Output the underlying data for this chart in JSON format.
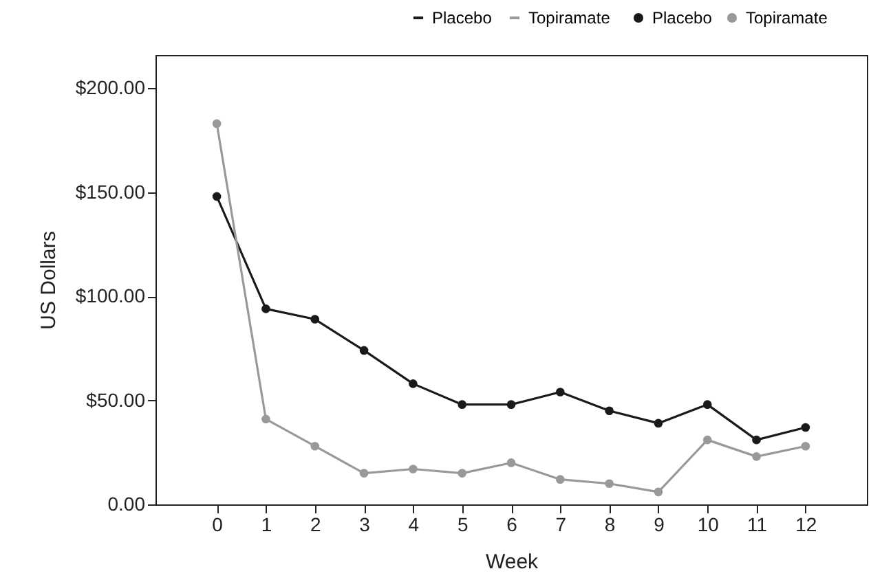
{
  "chart_data": {
    "type": "line",
    "xlabel": "Week",
    "ylabel": "US Dollars",
    "x": [
      0,
      1,
      2,
      3,
      4,
      5,
      6,
      7,
      8,
      9,
      10,
      11,
      12
    ],
    "xlim": [
      -1.25,
      13.25
    ],
    "xticks": [
      0,
      1,
      2,
      3,
      4,
      5,
      6,
      7,
      8,
      9,
      10,
      11,
      12
    ],
    "ylim": [
      0,
      216
    ],
    "yticks": [
      {
        "value": 0,
        "label": "0.00"
      },
      {
        "value": 50,
        "label": "$50.00"
      },
      {
        "value": 100,
        "label": "$100.00"
      },
      {
        "value": 150,
        "label": "$150.00"
      },
      {
        "value": 200,
        "label": "$200.00"
      }
    ],
    "series": [
      {
        "name": "Placebo",
        "color": "#1a1a1a",
        "values": [
          148,
          94,
          89,
          74,
          58,
          48,
          48,
          54,
          45,
          39,
          48,
          31,
          37
        ]
      },
      {
        "name": "Topiramate",
        "color": "#999999",
        "values": [
          183,
          41,
          28,
          15,
          17,
          15,
          20,
          12,
          10,
          6,
          31,
          23,
          28
        ]
      }
    ],
    "marker": "circle",
    "line_style": "solid",
    "legend": "top right",
    "grid": false
  }
}
